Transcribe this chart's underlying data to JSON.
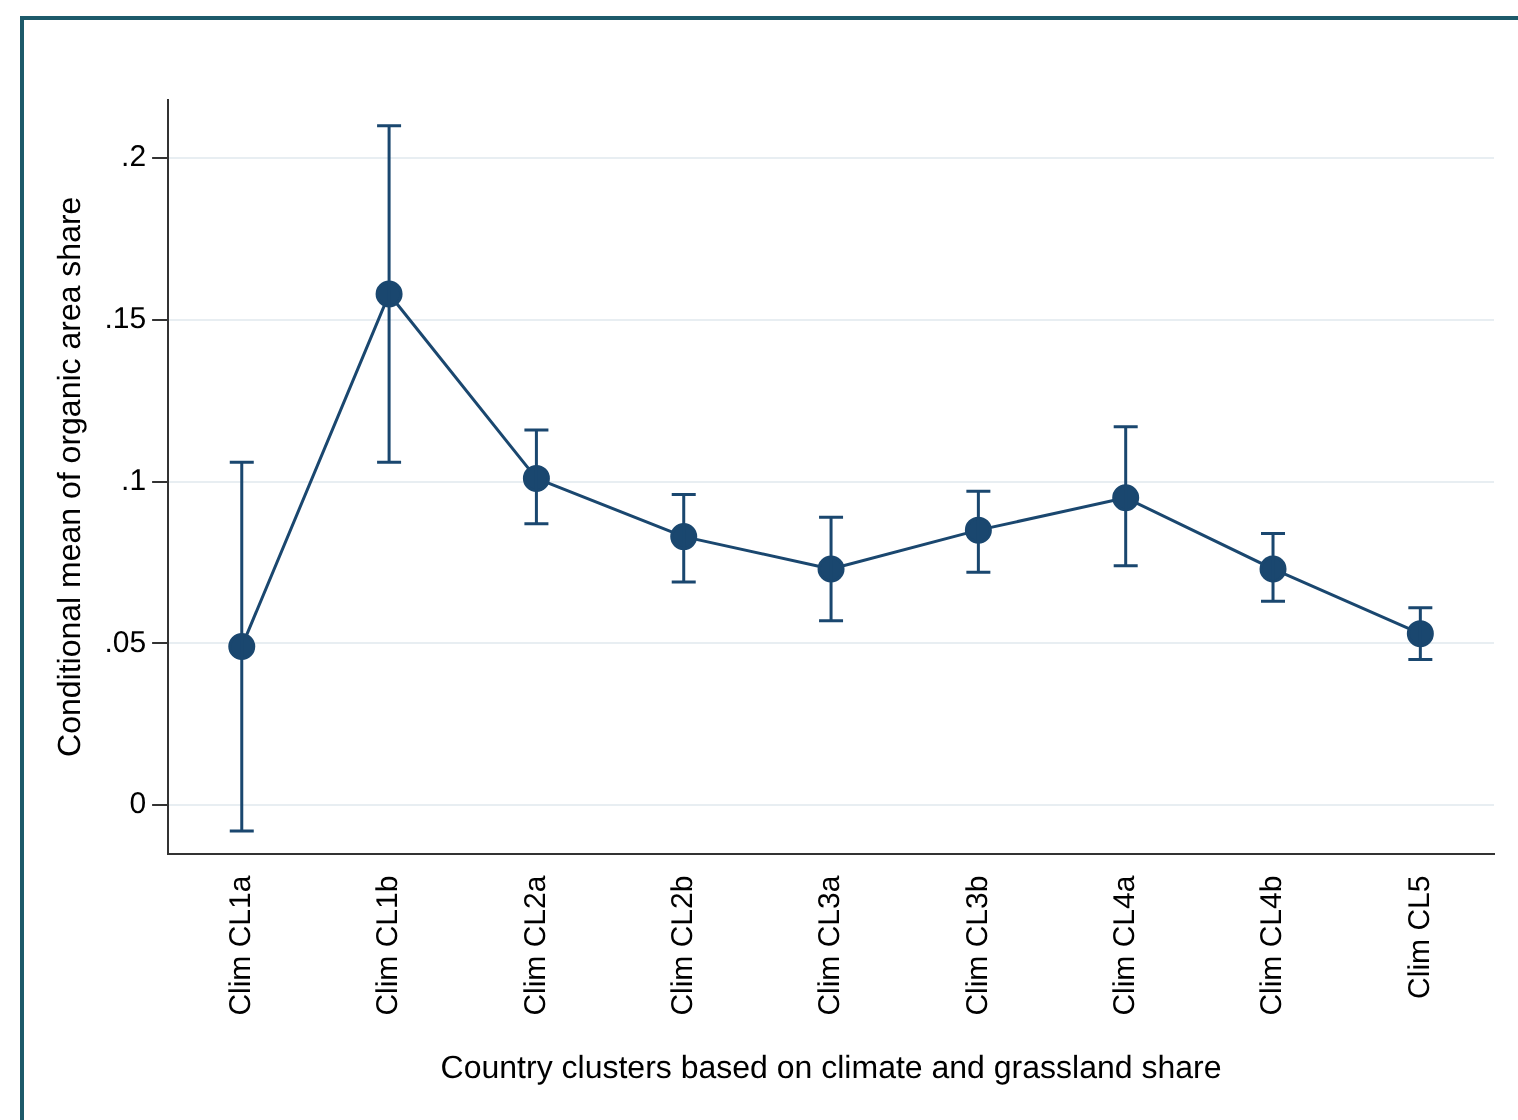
{
  "chart_data": {
    "type": "line",
    "xlabel": "Country clusters based on climate and grassland share",
    "ylabel": "Conditional mean of organic area share",
    "categories": [
      "Clim CL1a",
      "Clim CL1b",
      "Clim CL2a",
      "Clim CL2b",
      "Clim CL3a",
      "Clim CL3b",
      "Clim CL4a",
      "Clim CL4b",
      "Clim CL5"
    ],
    "series": [
      {
        "color": "#1a476f",
        "values": [
          0.049,
          0.158,
          0.101,
          0.083,
          0.073,
          0.085,
          0.095,
          0.073,
          0.053
        ],
        "errors": [
          [
            -0.008,
            0.106
          ],
          [
            0.106,
            0.21
          ],
          [
            0.087,
            0.116
          ],
          [
            0.069,
            0.096
          ],
          [
            0.057,
            0.089
          ],
          [
            0.072,
            0.097
          ],
          [
            0.074,
            0.117
          ],
          [
            0.063,
            0.084
          ],
          [
            0.045,
            0.061
          ]
        ]
      }
    ],
    "ylim": [
      -0.015,
      0.218
    ],
    "yticks": [
      0,
      {
        "value": 0.05,
        "label": ".05"
      },
      {
        "value": 0.1,
        "label": ".1"
      },
      {
        "value": 0.15,
        "label": ".15"
      },
      {
        "value": 0.2,
        "label": ".2"
      }
    ],
    "grid": "y",
    "marker": "circle",
    "line_style": "solid",
    "legend": false
  }
}
